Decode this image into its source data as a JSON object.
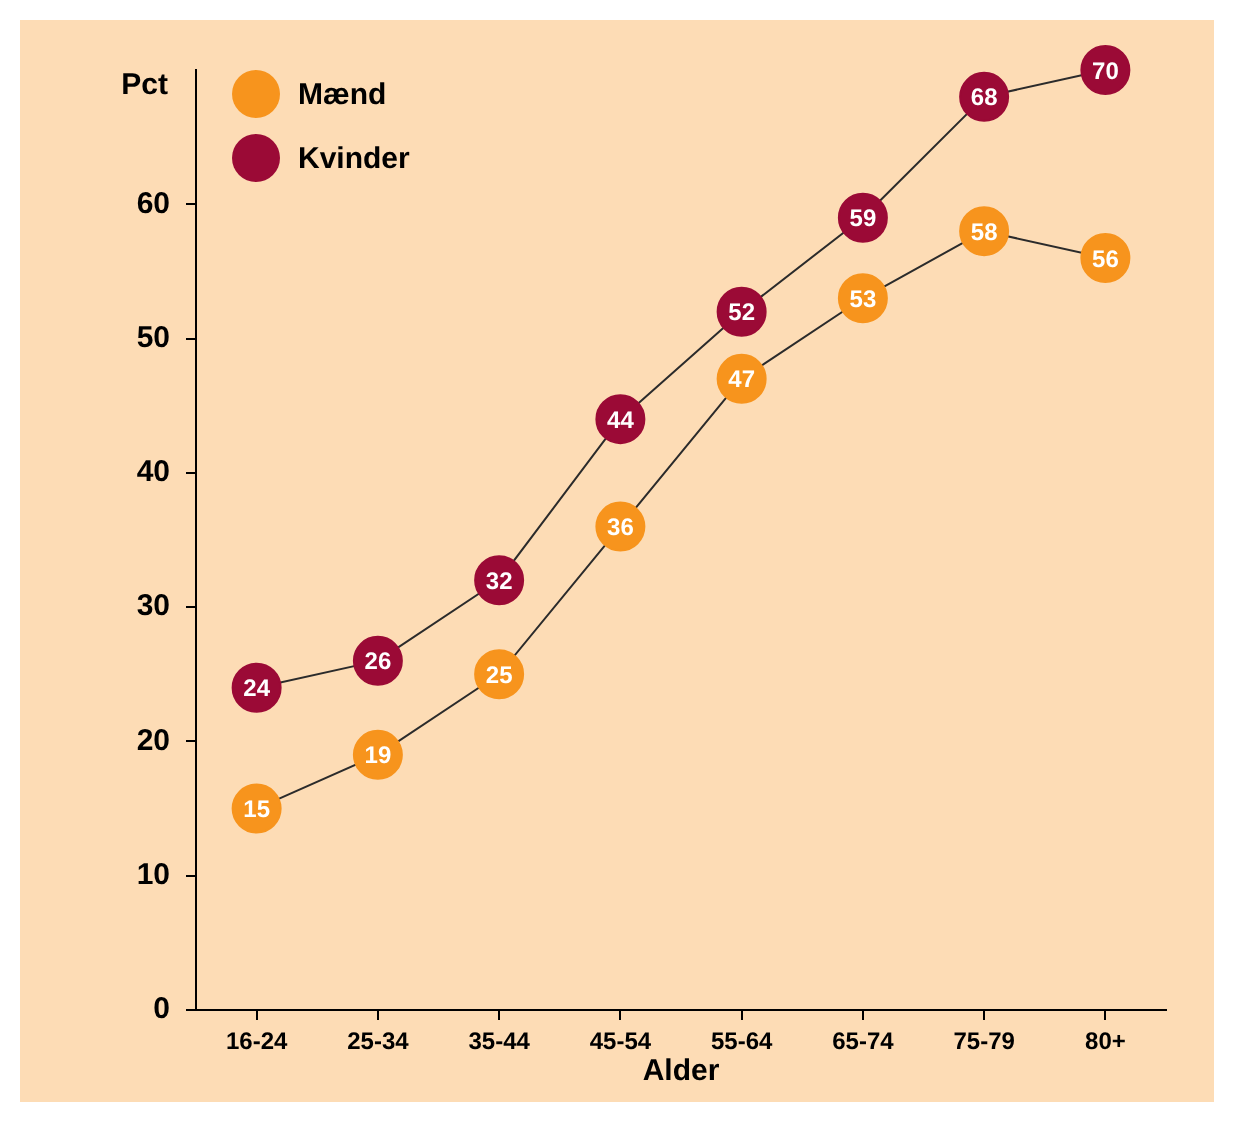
{
  "chart_data": {
    "type": "line",
    "xlabel": "Alder",
    "ylabel": "Pct",
    "categories": [
      "16-24",
      "25-34",
      "35-44",
      "45-54",
      "55-64",
      "65-74",
      "75-79",
      "80+"
    ],
    "series": [
      {
        "name": "Mænd",
        "color": "#f7941d",
        "values": [
          15,
          19,
          25,
          36,
          47,
          53,
          58,
          56
        ]
      },
      {
        "name": "Kvinder",
        "color": "#9b0a36",
        "values": [
          24,
          26,
          32,
          44,
          52,
          59,
          68,
          70
        ]
      }
    ],
    "ylim": [
      0,
      70
    ],
    "yticks": [
      0,
      10,
      20,
      30,
      40,
      50,
      60
    ],
    "grid": false,
    "legend": "top left",
    "marker": "circle",
    "line_style": "solid",
    "data_labels": true
  }
}
